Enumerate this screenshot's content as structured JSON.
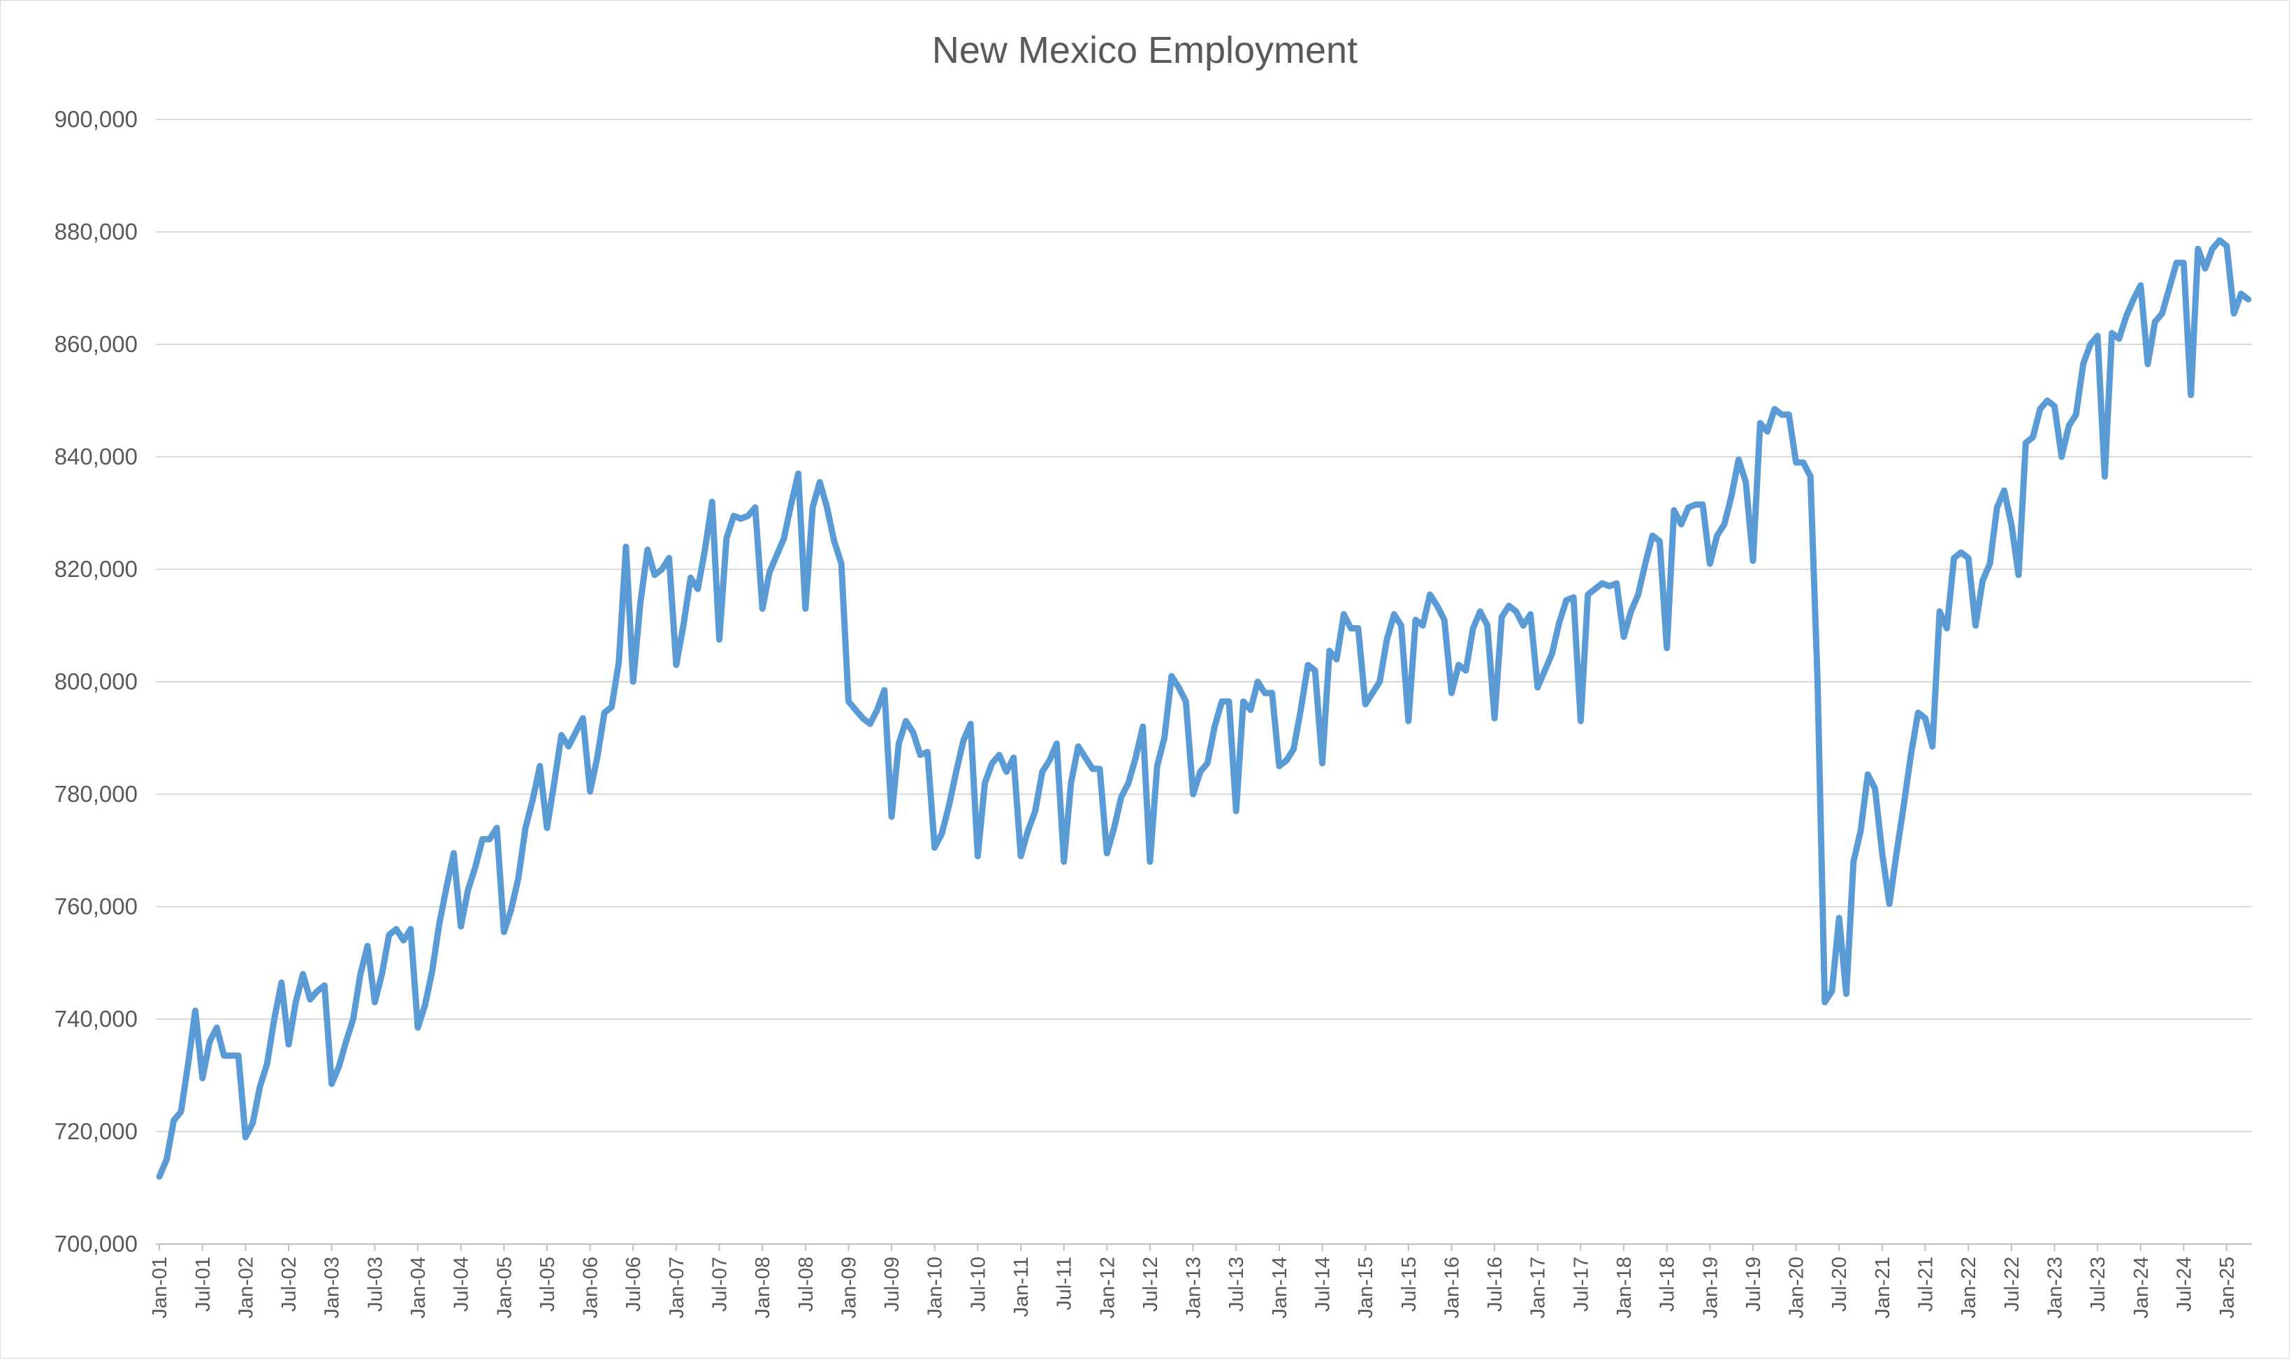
{
  "chart_data": {
    "type": "line",
    "title": "New Mexico Employment",
    "xlabel": "",
    "ylabel": "",
    "ylim": [
      700000,
      900000
    ],
    "y_ticks": [
      700000,
      720000,
      740000,
      760000,
      780000,
      800000,
      820000,
      840000,
      860000,
      880000,
      900000
    ],
    "y_tick_labels": [
      "700,000",
      "720,000",
      "740,000",
      "760,000",
      "780,000",
      "800,000",
      "820,000",
      "840,000",
      "860,000",
      "880,000",
      "900,000"
    ],
    "x_tick_labels": [
      "Jan-01",
      "Jul-01",
      "Jan-02",
      "Jul-02",
      "Jan-03",
      "Jul-03",
      "Jan-04",
      "Jul-04",
      "Jan-05",
      "Jul-05",
      "Jan-06",
      "Jul-06",
      "Jan-07",
      "Jul-07",
      "Jan-08",
      "Jul-08",
      "Jan-09",
      "Jul-09",
      "Jan-10",
      "Jul-10",
      "Jan-11",
      "Jul-11",
      "Jan-12",
      "Jul-12",
      "Jan-13",
      "Jul-13",
      "Jan-14",
      "Jul-14",
      "Jan-15",
      "Jul-15",
      "Jan-16",
      "Jul-16",
      "Jan-17",
      "Jul-17",
      "Jan-18",
      "Jul-18",
      "Jan-19",
      "Jul-19",
      "Jan-20",
      "Jul-20",
      "Jan-21",
      "Jul-21",
      "Jan-22",
      "Jul-22",
      "Jan-23",
      "Jul-23",
      "Jan-24",
      "Jul-24",
      "Jan-25"
    ],
    "grid": true,
    "legend": "none",
    "line_color": "#5b9bd5",
    "series": [
      {
        "start": "Jan-01",
        "values": [
          712000,
          715000,
          722000,
          723500,
          732000,
          741500,
          729500,
          736000,
          738500,
          733500,
          733500,
          733500,
          719000,
          721500,
          728000,
          732000,
          740000,
          746500,
          735500,
          743000,
          748000,
          743500,
          745000,
          746000,
          728500,
          731500,
          736000,
          740000,
          748000,
          753000,
          743000,
          748000,
          755000,
          756000,
          754000,
          756000,
          738500,
          742500,
          748500,
          757000,
          763500,
          769500,
          756500,
          763000,
          767000,
          772000,
          772000,
          774000,
          755500,
          759500,
          765000,
          774000,
          779000,
          785000,
          774000,
          782000,
          790500,
          788500,
          791000,
          793500,
          780500,
          786500,
          794500,
          795500,
          803500,
          824000,
          800000,
          814000,
          823500,
          819000,
          820000,
          822000,
          803000,
          810000,
          818500,
          816500,
          823500,
          832000,
          807500,
          825500,
          829500,
          829000,
          829500,
          831000,
          813000,
          819500,
          822500,
          825500,
          831500,
          837000,
          813000,
          831000,
          835500,
          831000,
          825000,
          821000,
          796500,
          795000,
          793500,
          792500,
          795000,
          798500,
          776000,
          789000,
          793000,
          791000,
          787000,
          787500,
          770500,
          773000,
          778000,
          784000,
          789500,
          792500,
          769000,
          782000,
          785500,
          787000,
          784000,
          786500,
          769000,
          773500,
          777000,
          784000,
          786000,
          789000,
          768000,
          782000,
          788500,
          786500,
          784500,
          784500,
          769500,
          774000,
          779500,
          782000,
          786500,
          792000,
          768000,
          785000,
          790000,
          801000,
          799000,
          796500,
          780000,
          784000,
          785500,
          792000,
          796500,
          796500,
          777000,
          796500,
          795000,
          800000,
          798000,
          798000,
          785000,
          786000,
          788000,
          795000,
          803000,
          802000,
          785500,
          805500,
          804000,
          812000,
          809500,
          809500,
          796000,
          798000,
          800000,
          807500,
          812000,
          810000,
          793000,
          811000,
          810000,
          815500,
          813500,
          811000,
          798000,
          803000,
          802000,
          809500,
          812500,
          810000,
          793500,
          811500,
          813500,
          812500,
          810000,
          812000,
          799000,
          802000,
          805000,
          810500,
          814500,
          815000,
          793000,
          815500,
          816500,
          817500,
          817000,
          817500,
          808000,
          812500,
          815500,
          821000,
          826000,
          825000,
          806000,
          830500,
          828000,
          831000,
          831500,
          831500,
          821000,
          826000,
          828000,
          833000,
          839500,
          835500,
          821500,
          846000,
          844500,
          848500,
          847500,
          847500,
          839000,
          839000,
          836500,
          800000,
          743000,
          745000,
          758000,
          744500,
          768000,
          773500,
          783500,
          781000,
          769500,
          760500,
          769500,
          778000,
          787000,
          794500,
          793500,
          788500,
          812500,
          809500,
          822000,
          823000,
          822000,
          810000,
          818000,
          821000,
          831000,
          834000,
          828000,
          819000,
          842500,
          843500,
          848500,
          850000,
          849000,
          840000,
          845500,
          847500,
          856500,
          860000,
          861500,
          836500,
          862000,
          861000,
          865000,
          868000,
          870500,
          856500,
          864000,
          865500,
          870000,
          874500,
          874500,
          851000,
          877000,
          873500,
          877000,
          878500,
          877500,
          865500,
          869000,
          868000
        ]
      }
    ]
  }
}
